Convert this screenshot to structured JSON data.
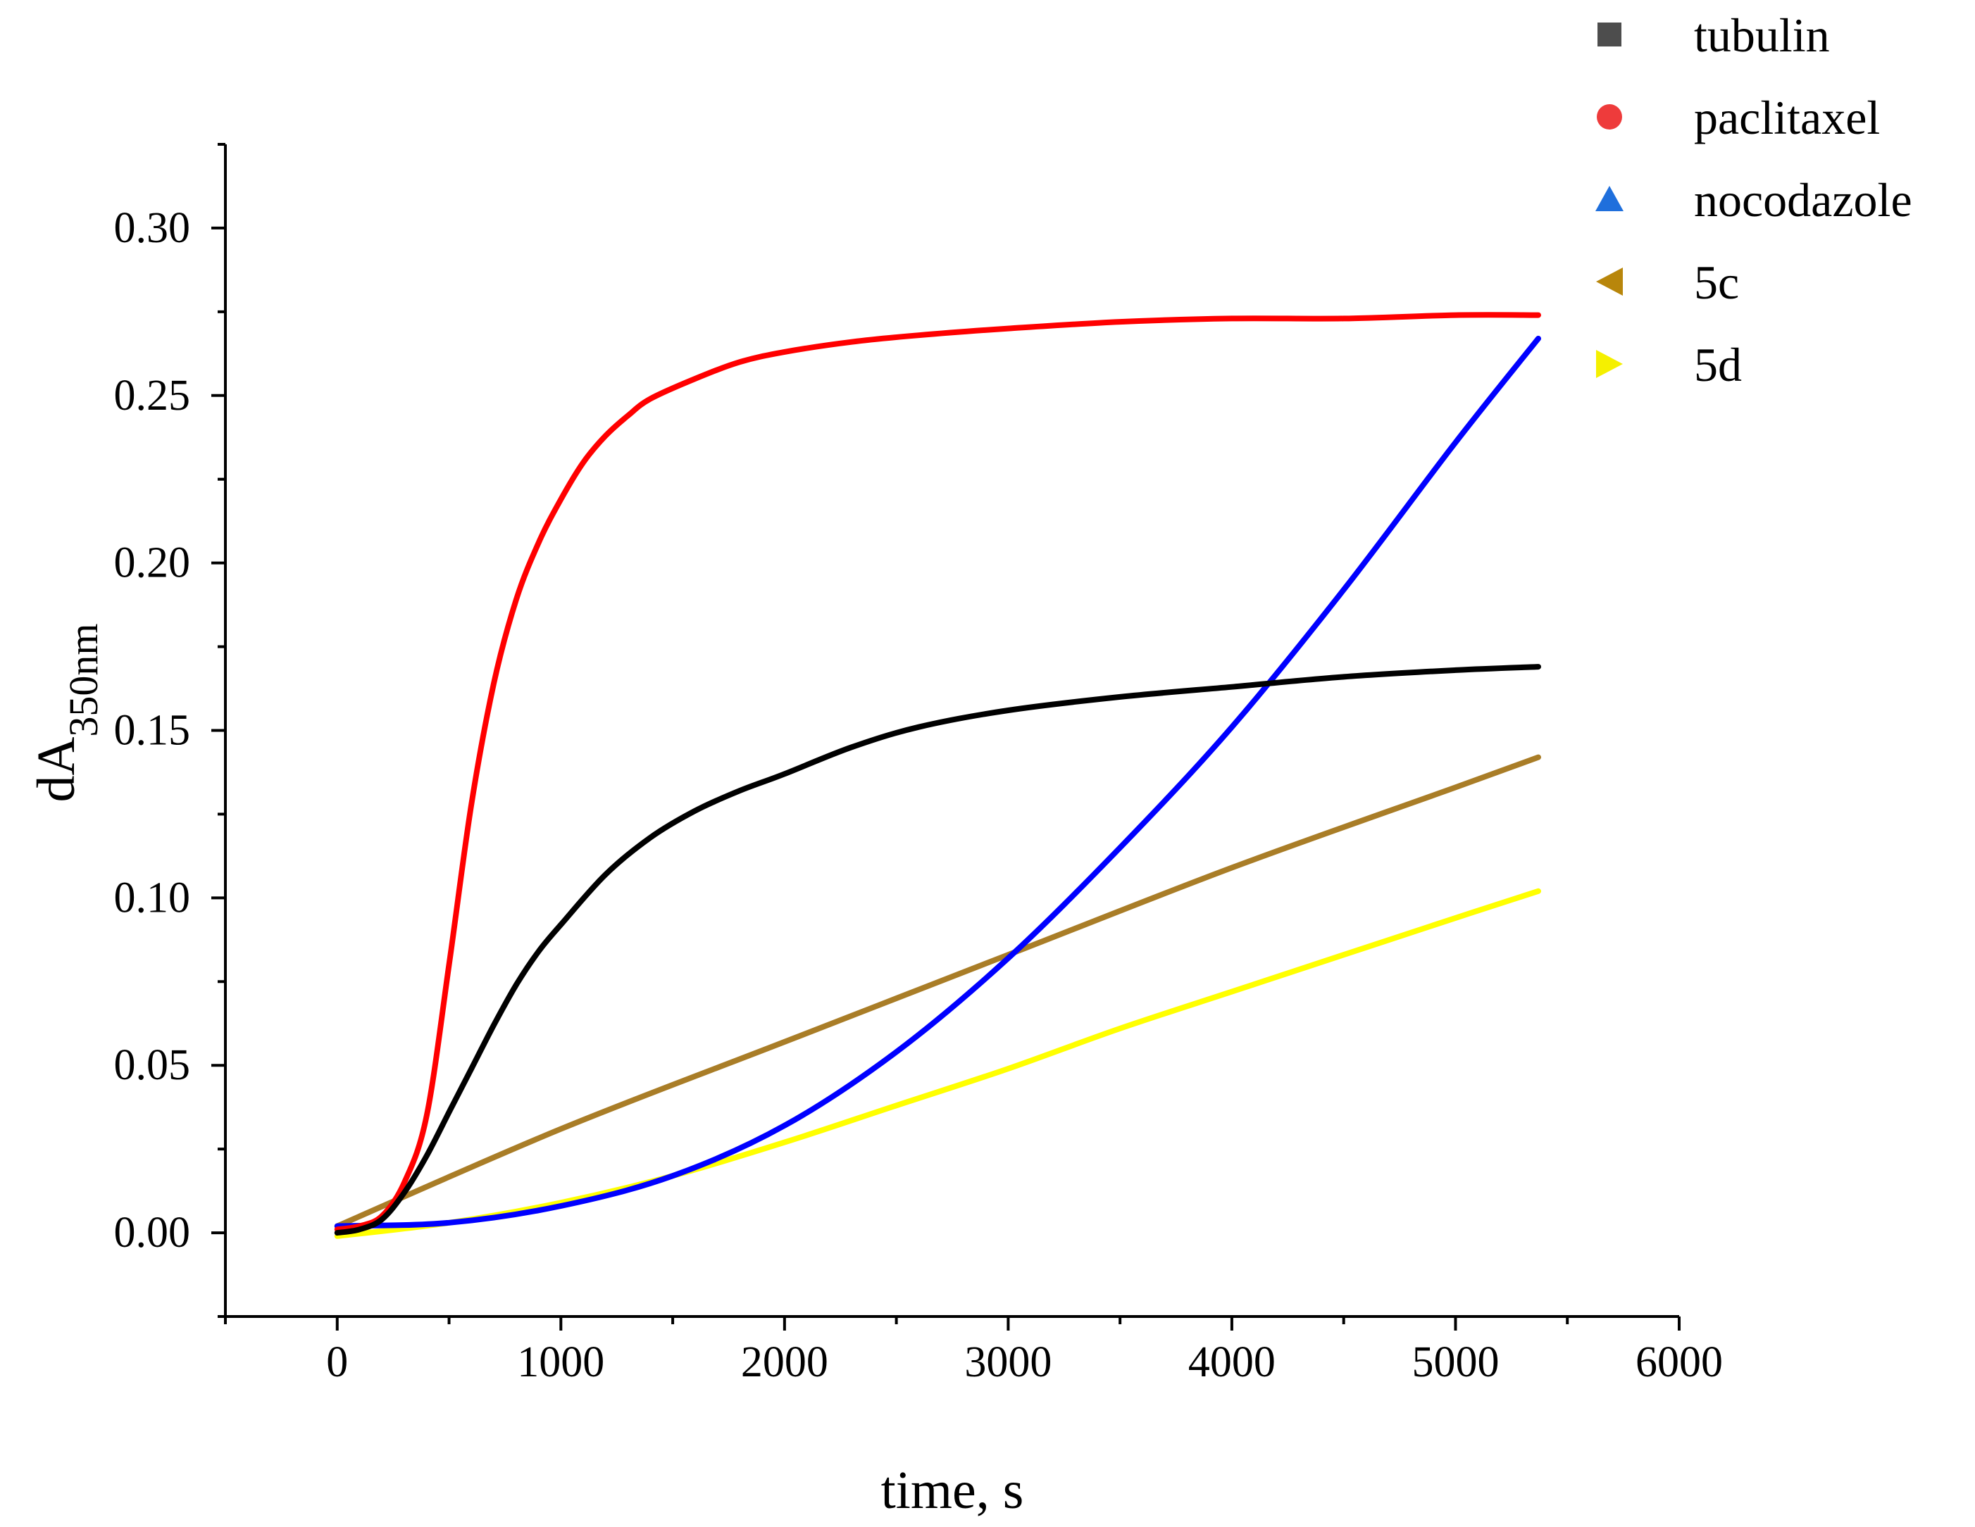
{
  "chart_data": {
    "type": "line",
    "title": "",
    "xlabel": "time, s",
    "ylabel_main": "dA",
    "ylabel_sub": "350nm",
    "xlim": [
      -500,
      6000
    ],
    "ylim": [
      -0.025,
      0.325
    ],
    "x_ticks": [
      0,
      1000,
      2000,
      3000,
      4000,
      5000,
      6000
    ],
    "x_tick_labels": [
      "0",
      "1000",
      "2000",
      "3000",
      "4000",
      "5000",
      "6000"
    ],
    "y_ticks": [
      0.0,
      0.05,
      0.1,
      0.15,
      0.2,
      0.25,
      0.3
    ],
    "y_tick_labels": [
      "0.00",
      "0.05",
      "0.10",
      "0.15",
      "0.20",
      "0.25",
      "0.30"
    ],
    "grid": false,
    "legend_position": "top-right",
    "series": [
      {
        "name": "tubulin",
        "color": "#000000",
        "marker": "square",
        "marker_color": "#4d4d4d",
        "x": [
          0,
          100,
          200,
          300,
          400,
          500,
          600,
          700,
          800,
          900,
          1000,
          1200,
          1400,
          1600,
          1800,
          2000,
          2300,
          2600,
          3000,
          3500,
          4000,
          4500,
          5000,
          5370
        ],
        "y": [
          0.0,
          0.001,
          0.004,
          0.012,
          0.023,
          0.036,
          0.049,
          0.062,
          0.074,
          0.084,
          0.092,
          0.107,
          0.118,
          0.126,
          0.132,
          0.137,
          0.145,
          0.151,
          0.156,
          0.16,
          0.163,
          0.166,
          0.168,
          0.169
        ]
      },
      {
        "name": "paclitaxel",
        "color": "#ff0000",
        "marker": "circle",
        "marker_color": "#ee3b3b",
        "x": [
          0,
          100,
          200,
          300,
          400,
          500,
          600,
          700,
          800,
          900,
          1000,
          1100,
          1200,
          1300,
          1400,
          1600,
          1800,
          2000,
          2300,
          2600,
          3000,
          3500,
          4000,
          4500,
          5000,
          5370
        ],
        "y": [
          0.001,
          0.002,
          0.005,
          0.015,
          0.035,
          0.08,
          0.128,
          0.164,
          0.189,
          0.206,
          0.219,
          0.23,
          0.238,
          0.244,
          0.249,
          0.255,
          0.26,
          0.263,
          0.266,
          0.268,
          0.27,
          0.272,
          0.273,
          0.273,
          0.274,
          0.274
        ]
      },
      {
        "name": "nocodazole",
        "color": "#0000ff",
        "marker": "triangle-up",
        "marker_color": "#1f6fdc",
        "x": [
          0,
          500,
          1000,
          1500,
          2000,
          2500,
          3000,
          3500,
          4000,
          4500,
          5000,
          5370
        ],
        "y": [
          0.002,
          0.003,
          0.008,
          0.017,
          0.032,
          0.054,
          0.082,
          0.115,
          0.151,
          0.192,
          0.236,
          0.267
        ]
      },
      {
        "name": "5c",
        "color": "#a97d27",
        "marker": "triangle-left",
        "marker_color": "#b8860b",
        "x": [
          0,
          1000,
          2000,
          3000,
          4000,
          5000,
          5370
        ],
        "y": [
          0.002,
          0.031,
          0.057,
          0.083,
          0.109,
          0.133,
          0.142
        ]
      },
      {
        "name": "5d",
        "color": "#ffff00",
        "marker": "triangle-right",
        "marker_color": "#f5f000",
        "x": [
          0,
          500,
          1000,
          1500,
          2000,
          2500,
          3000,
          3500,
          4000,
          4500,
          5000,
          5370
        ],
        "y": [
          -0.001,
          0.003,
          0.009,
          0.017,
          0.027,
          0.038,
          0.049,
          0.061,
          0.072,
          0.083,
          0.094,
          0.102
        ]
      }
    ]
  }
}
